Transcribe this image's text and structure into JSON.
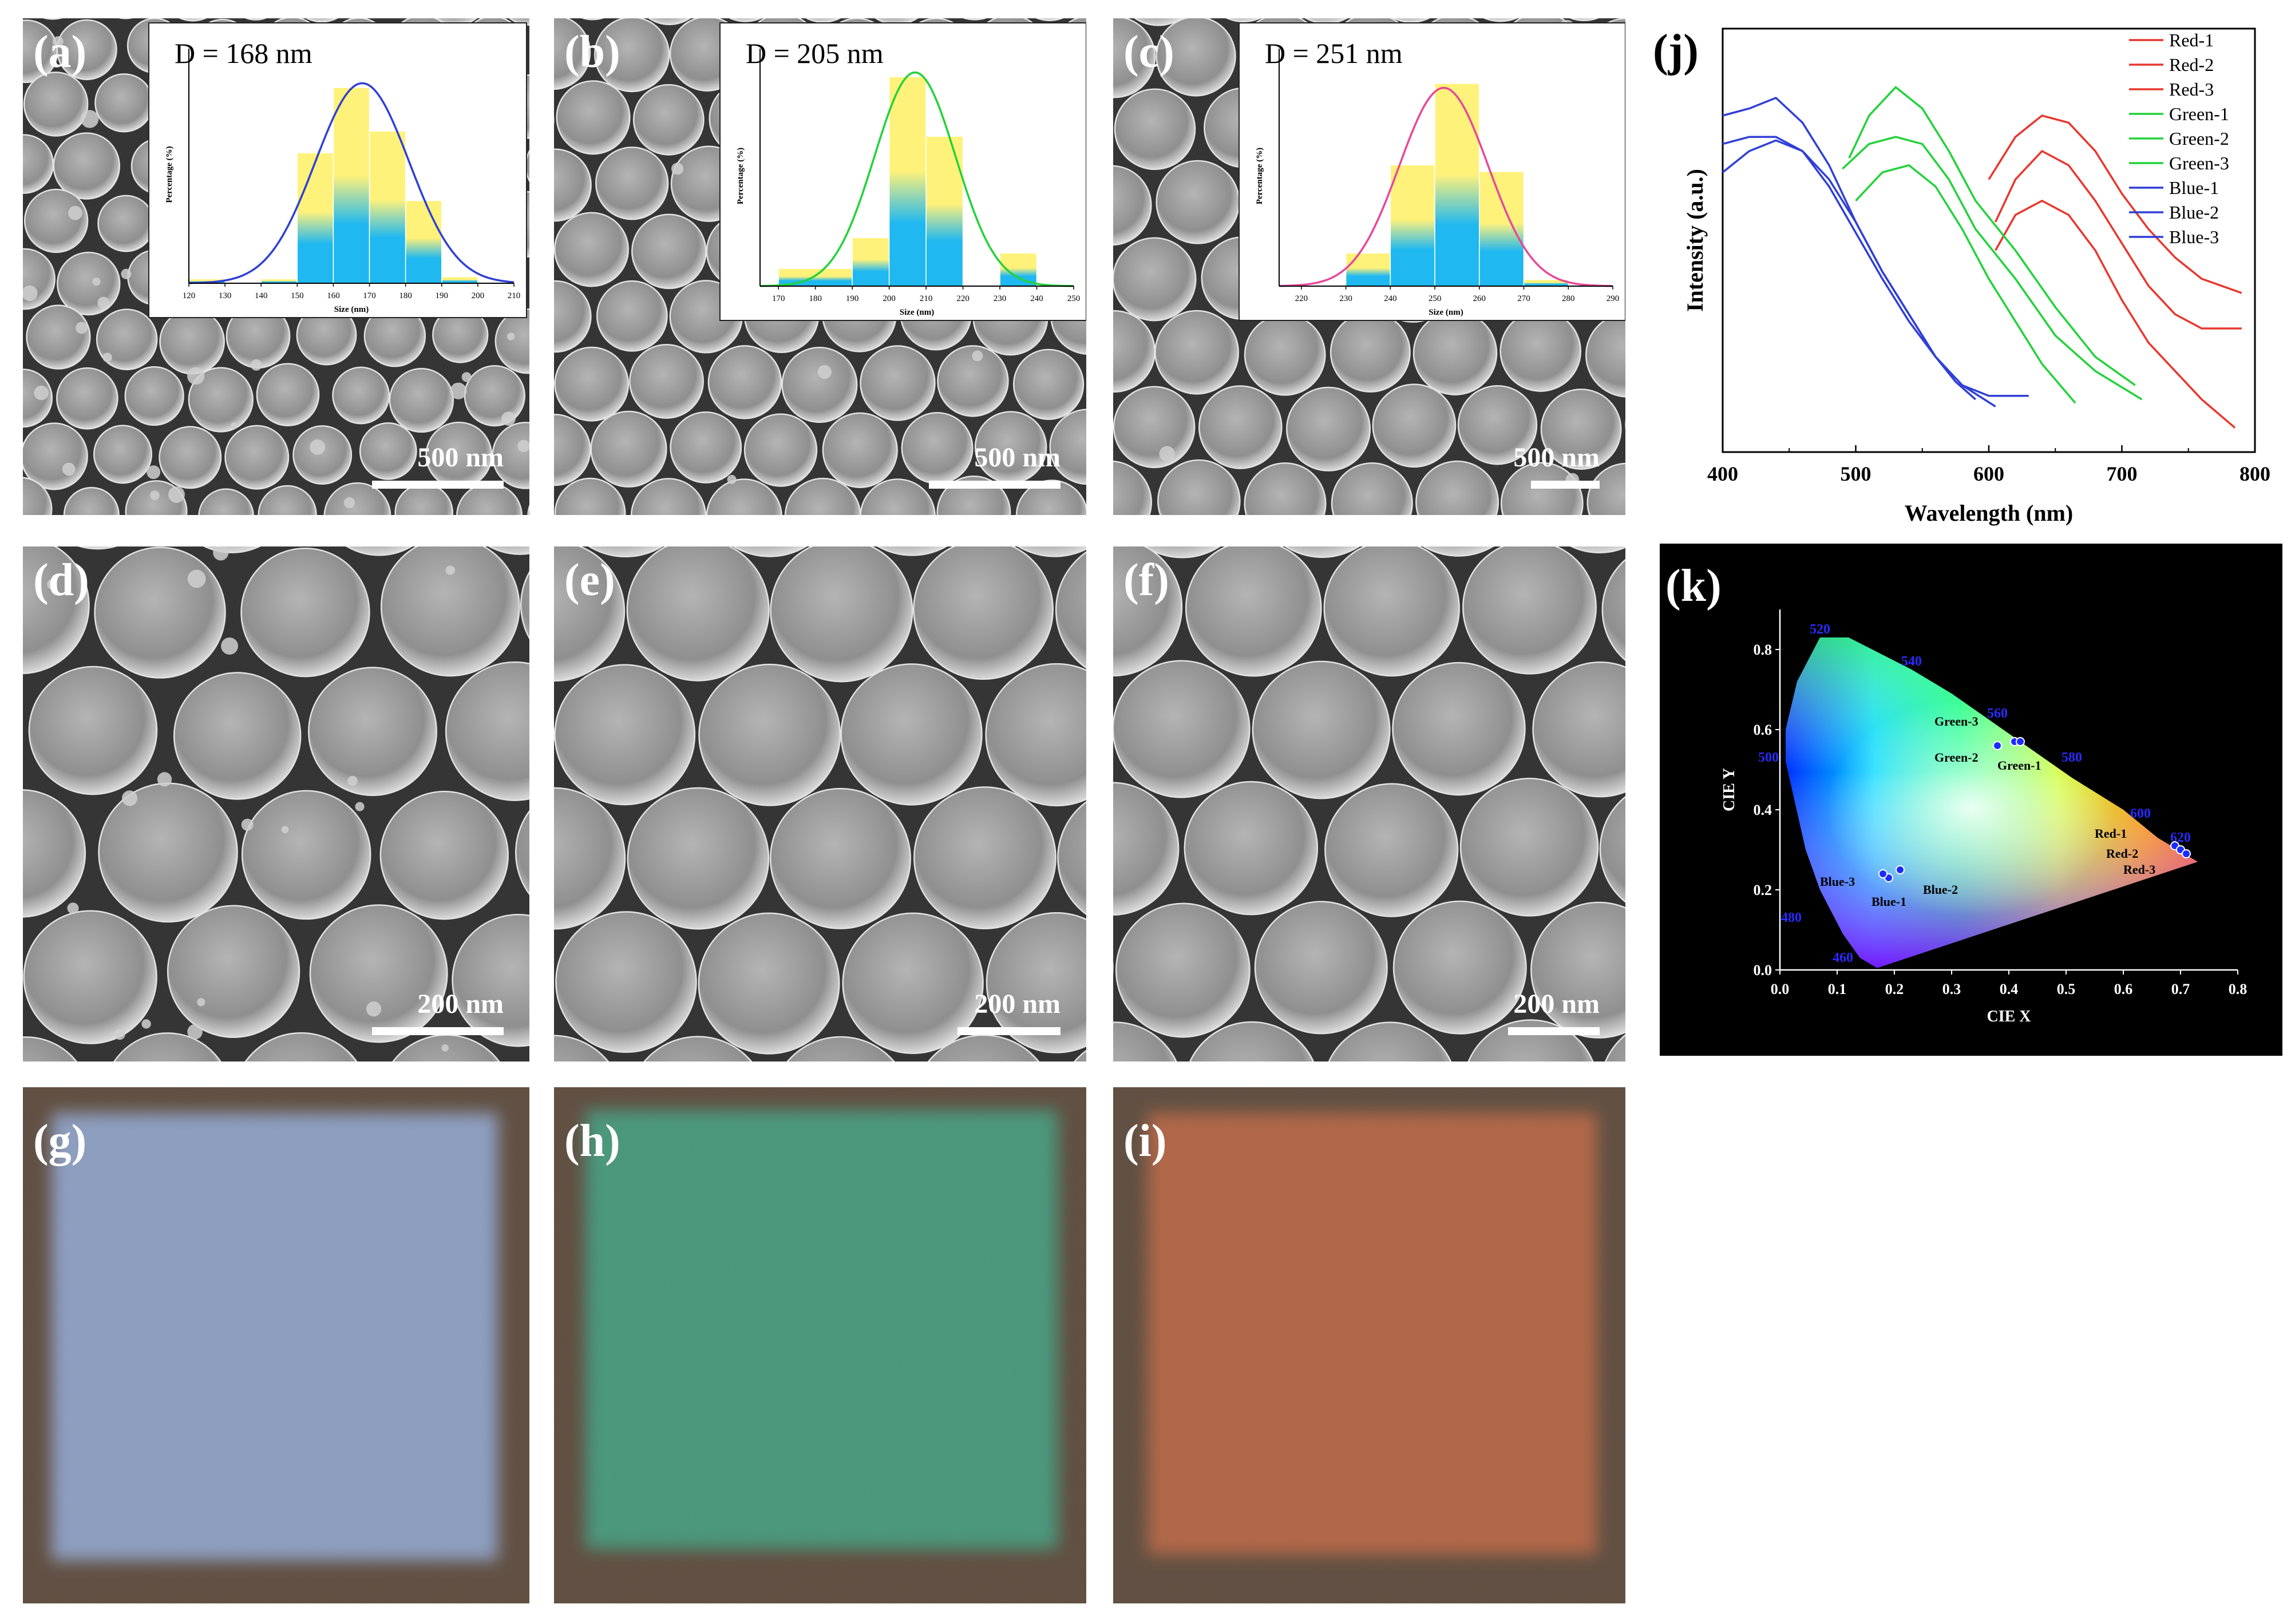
{
  "panels": {
    "a": {
      "tag": "(a)",
      "scale": "500 nm"
    },
    "b": {
      "tag": "(b)",
      "scale": "500 nm"
    },
    "c": {
      "tag": "(c)",
      "scale": "500 nm"
    },
    "d": {
      "tag": "(d)",
      "scale": "200 nm"
    },
    "e": {
      "tag": "(e)",
      "scale": "200 nm"
    },
    "f": {
      "tag": "(f)",
      "scale": "200 nm"
    },
    "g": {
      "tag": "(g)"
    },
    "h": {
      "tag": "(h)"
    },
    "i": {
      "tag": "(i)"
    },
    "j": {
      "tag": "(j)"
    },
    "k": {
      "tag": "(k)"
    }
  },
  "colors": {
    "red": "#e8372e",
    "green": "#22d23a",
    "blue": "#2f3fd6",
    "hist_top": "#fff27a",
    "hist_bottom": "#1fb8f0",
    "photo_blue": "#8ea2c9",
    "photo_green": "#3f9a7a",
    "photo_red": "#b8623e"
  },
  "chart_data": [
    {
      "id": "hist-a",
      "type": "bar",
      "title": "D = 168 nm",
      "xlabel": "Size (nm)",
      "ylabel": "Percentage (%)",
      "xlim": [
        120,
        210
      ],
      "xticks": [
        "120",
        "130",
        "140",
        "150",
        "160",
        "170",
        "180",
        "190",
        "200",
        "210"
      ],
      "fit_color": "#2f3fd6",
      "bins": [
        [
          120,
          130,
          2
        ],
        [
          140,
          150,
          2
        ],
        [
          150,
          160,
          60
        ],
        [
          160,
          170,
          90
        ],
        [
          170,
          180,
          70
        ],
        [
          180,
          190,
          38
        ],
        [
          190,
          200,
          3
        ]
      ],
      "fit": {
        "mu": 168,
        "sigma": 13,
        "peak": 92
      },
      "ylim": [
        0,
        100
      ]
    },
    {
      "id": "hist-b",
      "type": "bar",
      "title": "D = 205 nm",
      "xlabel": "Size (nm)",
      "ylabel": "Percentage (%)",
      "xlim": [
        165,
        250
      ],
      "xticks": [
        "170",
        "180",
        "190",
        "200",
        "210",
        "220",
        "230",
        "240",
        "250"
      ],
      "fit_color": "#22d23a",
      "bins": [
        [
          170,
          190,
          8
        ],
        [
          190,
          200,
          22
        ],
        [
          200,
          210,
          95
        ],
        [
          210,
          220,
          68
        ],
        [
          230,
          240,
          15
        ]
      ],
      "fit": {
        "mu": 207,
        "sigma": 11,
        "peak": 97
      },
      "ylim": [
        0,
        100
      ]
    },
    {
      "id": "hist-c",
      "type": "bar",
      "title": "D = 251 nm",
      "xlabel": "Size (nm)",
      "ylabel": "Percentage (%)",
      "xlim": [
        215,
        290
      ],
      "xticks": [
        "220",
        "230",
        "240",
        "250",
        "260",
        "270",
        "280",
        "290"
      ],
      "fit_color": "#e8479a",
      "bins": [
        [
          230,
          240,
          15
        ],
        [
          240,
          250,
          55
        ],
        [
          250,
          260,
          92
        ],
        [
          260,
          270,
          52
        ],
        [
          270,
          280,
          3
        ]
      ],
      "fit": {
        "mu": 252,
        "sigma": 10,
        "peak": 90
      },
      "ylim": [
        0,
        100
      ]
    },
    {
      "id": "spectra-j",
      "type": "line",
      "xlabel": "Wavelength (nm)",
      "ylabel": "Intensity (a.u.)",
      "xlim": [
        400,
        800
      ],
      "ylim": [
        0,
        100
      ],
      "xticks": [
        "400",
        "500",
        "600",
        "700",
        "800"
      ],
      "legend_position": "top-right",
      "series": [
        {
          "name": "Red-1",
          "color": "#e8372e",
          "points": [
            [
              600,
              72
            ],
            [
              620,
              84
            ],
            [
              640,
              90
            ],
            [
              660,
              88
            ],
            [
              680,
              80
            ],
            [
              700,
              68
            ],
            [
              720,
              58
            ],
            [
              740,
              50
            ],
            [
              760,
              44
            ],
            [
              790,
              40
            ]
          ]
        },
        {
          "name": "Red-2",
          "color": "#e8372e",
          "points": [
            [
              605,
              60
            ],
            [
              620,
              72
            ],
            [
              640,
              80
            ],
            [
              660,
              76
            ],
            [
              680,
              66
            ],
            [
              700,
              54
            ],
            [
              720,
              42
            ],
            [
              740,
              34
            ],
            [
              760,
              30
            ],
            [
              790,
              30
            ]
          ]
        },
        {
          "name": "Red-3",
          "color": "#e8372e",
          "points": [
            [
              605,
              52
            ],
            [
              620,
              62
            ],
            [
              640,
              66
            ],
            [
              660,
              62
            ],
            [
              680,
              52
            ],
            [
              700,
              38
            ],
            [
              720,
              26
            ],
            [
              740,
              18
            ],
            [
              760,
              10
            ],
            [
              785,
              2
            ]
          ]
        },
        {
          "name": "Green-1",
          "color": "#22d23a",
          "points": [
            [
              495,
              78
            ],
            [
              510,
              90
            ],
            [
              530,
              98
            ],
            [
              550,
              92
            ],
            [
              570,
              80
            ],
            [
              590,
              66
            ],
            [
              620,
              52
            ],
            [
              650,
              36
            ],
            [
              680,
              22
            ],
            [
              710,
              14
            ]
          ]
        },
        {
          "name": "Green-2",
          "color": "#22d23a",
          "points": [
            [
              490,
              75
            ],
            [
              510,
              82
            ],
            [
              530,
              84
            ],
            [
              550,
              82
            ],
            [
              570,
              72
            ],
            [
              590,
              58
            ],
            [
              620,
              44
            ],
            [
              650,
              28
            ],
            [
              680,
              18
            ],
            [
              715,
              10
            ]
          ]
        },
        {
          "name": "Green-3",
          "color": "#22d23a",
          "points": [
            [
              500,
              66
            ],
            [
              520,
              74
            ],
            [
              540,
              76
            ],
            [
              560,
              70
            ],
            [
              580,
              58
            ],
            [
              600,
              44
            ],
            [
              620,
              32
            ],
            [
              640,
              20
            ],
            [
              665,
              9
            ]
          ]
        },
        {
          "name": "Blue-1",
          "color": "#2f3fd6",
          "points": [
            [
              400,
              90
            ],
            [
              420,
              92
            ],
            [
              440,
              95
            ],
            [
              460,
              88
            ],
            [
              480,
              76
            ],
            [
              500,
              60
            ],
            [
              520,
              46
            ],
            [
              540,
              34
            ],
            [
              560,
              22
            ],
            [
              575,
              15
            ],
            [
              590,
              10
            ]
          ]
        },
        {
          "name": "Blue-2",
          "color": "#2f3fd6",
          "points": [
            [
              400,
              82
            ],
            [
              420,
              84
            ],
            [
              440,
              84
            ],
            [
              460,
              80
            ],
            [
              480,
              72
            ],
            [
              500,
              60
            ],
            [
              520,
              46
            ],
            [
              540,
              34
            ],
            [
              560,
              22
            ],
            [
              580,
              14
            ],
            [
              600,
              11
            ],
            [
              630,
              11
            ]
          ]
        },
        {
          "name": "Blue-3",
          "color": "#2f3fd6",
          "points": [
            [
              400,
              74
            ],
            [
              420,
              80
            ],
            [
              440,
              83
            ],
            [
              460,
              80
            ],
            [
              480,
              70
            ],
            [
              500,
              57
            ],
            [
              520,
              44
            ],
            [
              540,
              32
            ],
            [
              560,
              22
            ],
            [
              580,
              14
            ],
            [
              605,
              8
            ]
          ]
        }
      ]
    },
    {
      "id": "cie-k",
      "type": "scatter",
      "xlabel": "CIE X",
      "ylabel": "CIE Y",
      "xlim": [
        0.0,
        0.8
      ],
      "ylim": [
        0.0,
        0.9
      ],
      "xticks": [
        "0.0",
        "0.1",
        "0.2",
        "0.3",
        "0.4",
        "0.5",
        "0.6",
        "0.7",
        "0.8"
      ],
      "yticks": [
        "0.0",
        "0.2",
        "0.4",
        "0.6",
        "0.8"
      ],
      "wavelength_labels": [
        {
          "label": "520",
          "x": 0.07,
          "y": 0.84
        },
        {
          "label": "540",
          "x": 0.23,
          "y": 0.76
        },
        {
          "label": "560",
          "x": 0.38,
          "y": 0.63
        },
        {
          "label": "580",
          "x": 0.51,
          "y": 0.52
        },
        {
          "label": "500",
          "x": -0.02,
          "y": 0.52
        },
        {
          "label": "600",
          "x": 0.63,
          "y": 0.38
        },
        {
          "label": "620",
          "x": 0.7,
          "y": 0.32
        },
        {
          "label": "480",
          "x": 0.02,
          "y": 0.12
        },
        {
          "label": "460",
          "x": 0.11,
          "y": 0.02
        }
      ],
      "points": [
        {
          "name": "Green-1",
          "x": 0.41,
          "y": 0.57
        },
        {
          "name": "Green-2",
          "x": 0.38,
          "y": 0.56
        },
        {
          "name": "Green-3",
          "x": 0.42,
          "y": 0.57
        },
        {
          "name": "Red-1",
          "x": 0.69,
          "y": 0.31
        },
        {
          "name": "Red-2",
          "x": 0.7,
          "y": 0.3
        },
        {
          "name": "Red-3",
          "x": 0.71,
          "y": 0.29
        },
        {
          "name": "Blue-1",
          "x": 0.19,
          "y": 0.23
        },
        {
          "name": "Blue-2",
          "x": 0.21,
          "y": 0.25
        },
        {
          "name": "Blue-3",
          "x": 0.18,
          "y": 0.24
        }
      ],
      "point_labels": [
        {
          "name": "Green-3",
          "x": 0.27,
          "y": 0.61
        },
        {
          "name": "Green-2",
          "x": 0.27,
          "y": 0.52
        },
        {
          "name": "Green-1",
          "x": 0.38,
          "y": 0.5
        },
        {
          "name": "Red-1",
          "x": 0.55,
          "y": 0.33
        },
        {
          "name": "Red-2",
          "x": 0.57,
          "y": 0.28
        },
        {
          "name": "Red-3",
          "x": 0.6,
          "y": 0.24
        },
        {
          "name": "Blue-3",
          "x": 0.07,
          "y": 0.21
        },
        {
          "name": "Blue-1",
          "x": 0.16,
          "y": 0.16
        },
        {
          "name": "Blue-2",
          "x": 0.25,
          "y": 0.19
        }
      ]
    }
  ]
}
